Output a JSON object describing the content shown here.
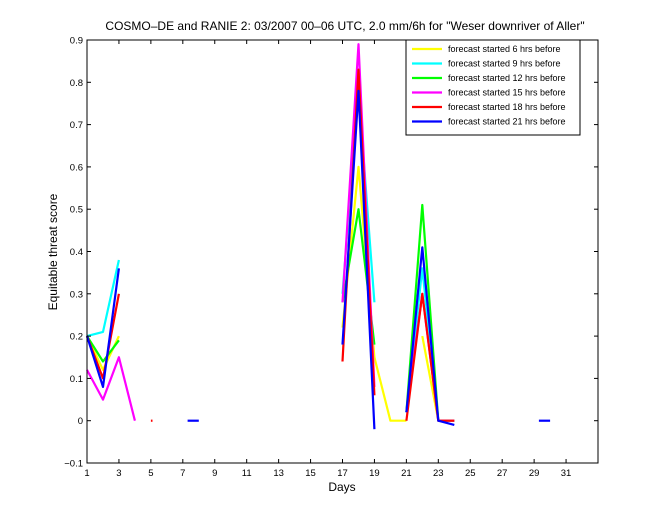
{
  "chart_data": {
    "type": "line",
    "title": "COSMO–DE and RANIE 2: 03/2007 00–06 UTC, 2.0 mm/6h for \"Weser downriver of Aller\"",
    "xlabel": "Days",
    "ylabel": "Equitable threat score",
    "xlim": [
      1,
      33
    ],
    "ylim": [
      -0.1,
      0.9
    ],
    "xticks": [
      1,
      3,
      5,
      7,
      9,
      11,
      13,
      15,
      17,
      19,
      21,
      23,
      25,
      27,
      29,
      31
    ],
    "yticks": [
      -0.1,
      0,
      0.1,
      0.2,
      0.3,
      0.4,
      0.5,
      0.6,
      0.7,
      0.8,
      0.9
    ],
    "ytick_labels": [
      "−0.1",
      "0",
      "0.1",
      "0.2",
      "0.3",
      "0.4",
      "0.5",
      "0.6",
      "0.7",
      "0.8",
      "0.9"
    ],
    "grid": false,
    "legend_position": "top-right",
    "series": [
      {
        "name": "forecast started 6 hrs before",
        "color": "#ffff00",
        "segments": [
          [
            [
              1,
              0.2
            ],
            [
              2,
              0.12
            ],
            [
              3,
              0.2
            ]
          ],
          [
            [
              17,
              0.22
            ],
            [
              18,
              0.6
            ],
            [
              19,
              0.15
            ],
            [
              20,
              0
            ],
            [
              21,
              0
            ]
          ],
          [
            [
              22,
              0.2
            ],
            [
              23,
              0
            ],
            [
              24,
              0
            ]
          ]
        ]
      },
      {
        "name": "forecast started 9 hrs before",
        "color": "#00ffff",
        "segments": [
          [
            [
              1,
              0.2
            ],
            [
              2,
              0.21
            ],
            [
              3,
              0.38
            ]
          ],
          [
            [
              17,
              0.3
            ],
            [
              18,
              0.78
            ],
            [
              19,
              0.28
            ]
          ],
          [
            [
              21,
              0.02
            ],
            [
              22,
              0.36
            ],
            [
              23,
              0
            ],
            [
              24,
              0
            ]
          ]
        ]
      },
      {
        "name": "forecast started 12 hrs before",
        "color": "#00ff00",
        "segments": [
          [
            [
              1,
              0.2
            ],
            [
              2,
              0.14
            ],
            [
              3,
              0.19
            ]
          ],
          [
            [
              17,
              0.28
            ],
            [
              18,
              0.5
            ],
            [
              19,
              0.18
            ]
          ],
          [
            [
              21,
              0.02
            ],
            [
              22,
              0.51
            ],
            [
              23,
              0
            ],
            [
              24,
              0
            ]
          ]
        ]
      },
      {
        "name": "forecast started 15 hrs before",
        "color": "#ff00ff",
        "segments": [
          [
            [
              1,
              0.12
            ],
            [
              2,
              0.05
            ],
            [
              3,
              0.15
            ],
            [
              4,
              0
            ]
          ],
          [
            [
              17,
              0.28
            ],
            [
              18,
              0.89
            ],
            [
              19,
              0.08
            ]
          ],
          [
            [
              21,
              0.02
            ],
            [
              22,
              0.3
            ],
            [
              23,
              0
            ],
            [
              24,
              0
            ]
          ]
        ]
      },
      {
        "name": "forecast started 18 hrs before",
        "color": "#ff0000",
        "segments": [
          [
            [
              1,
              0.2
            ],
            [
              2,
              0.1
            ],
            [
              3,
              0.3
            ]
          ],
          [
            [
              5,
              0
            ],
            [
              5.1,
              0
            ]
          ],
          [
            [
              17,
              0.14
            ],
            [
              18,
              0.83
            ],
            [
              19,
              0.06
            ]
          ],
          [
            [
              21,
              0
            ],
            [
              22,
              0.3
            ],
            [
              23,
              0
            ],
            [
              24,
              0
            ]
          ]
        ]
      },
      {
        "name": "forecast started 21 hrs before",
        "color": "#0000ff",
        "segments": [
          [
            [
              1,
              0.2
            ],
            [
              2,
              0.08
            ],
            [
              3,
              0.36
            ]
          ],
          [
            [
              7.3,
              0
            ],
            [
              8,
              0
            ]
          ],
          [
            [
              17,
              0.18
            ],
            [
              18,
              0.78
            ],
            [
              19,
              -0.02
            ]
          ],
          [
            [
              21,
              0.02
            ],
            [
              22,
              0.41
            ],
            [
              23,
              0
            ],
            [
              24,
              -0.01
            ]
          ],
          [
            [
              29.3,
              0
            ],
            [
              30,
              0
            ]
          ]
        ]
      }
    ]
  }
}
